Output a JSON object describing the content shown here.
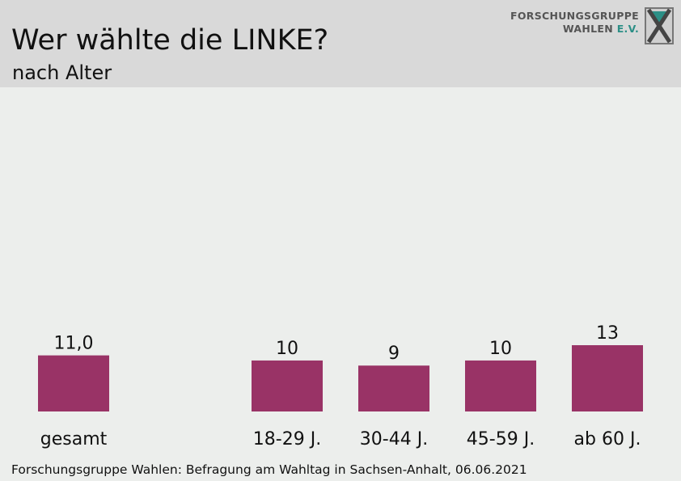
{
  "header": {
    "title": "Wer wählte die LINKE?",
    "subtitle": "nach Alter",
    "logo_line1": "FORSCHUNGSGRUPPE",
    "logo_line2_main": "WAHLEN",
    "logo_line2_ev": "E.V."
  },
  "footer": {
    "source": "Forschungsgruppe Wahlen: Befragung am Wahltag in Sachsen-Anhalt, 06.06.2021"
  },
  "colors": {
    "bar": "#993366",
    "header_bg": "#d9d9d9",
    "plot_bg": "#eceeec",
    "logo_accent": "#2c8f86"
  },
  "chart_data": {
    "type": "bar",
    "title": "Wer wählte die LINKE?",
    "subtitle": "nach Alter",
    "categories": [
      "gesamt",
      "18-29 J.",
      "30-44 J.",
      "45-59 J.",
      "ab 60 J."
    ],
    "values": [
      11.0,
      10,
      9,
      10,
      13
    ],
    "value_labels": [
      "11,0",
      "10",
      "9",
      "10",
      "13"
    ],
    "unit": "%",
    "grid": false,
    "legend": "none"
  }
}
